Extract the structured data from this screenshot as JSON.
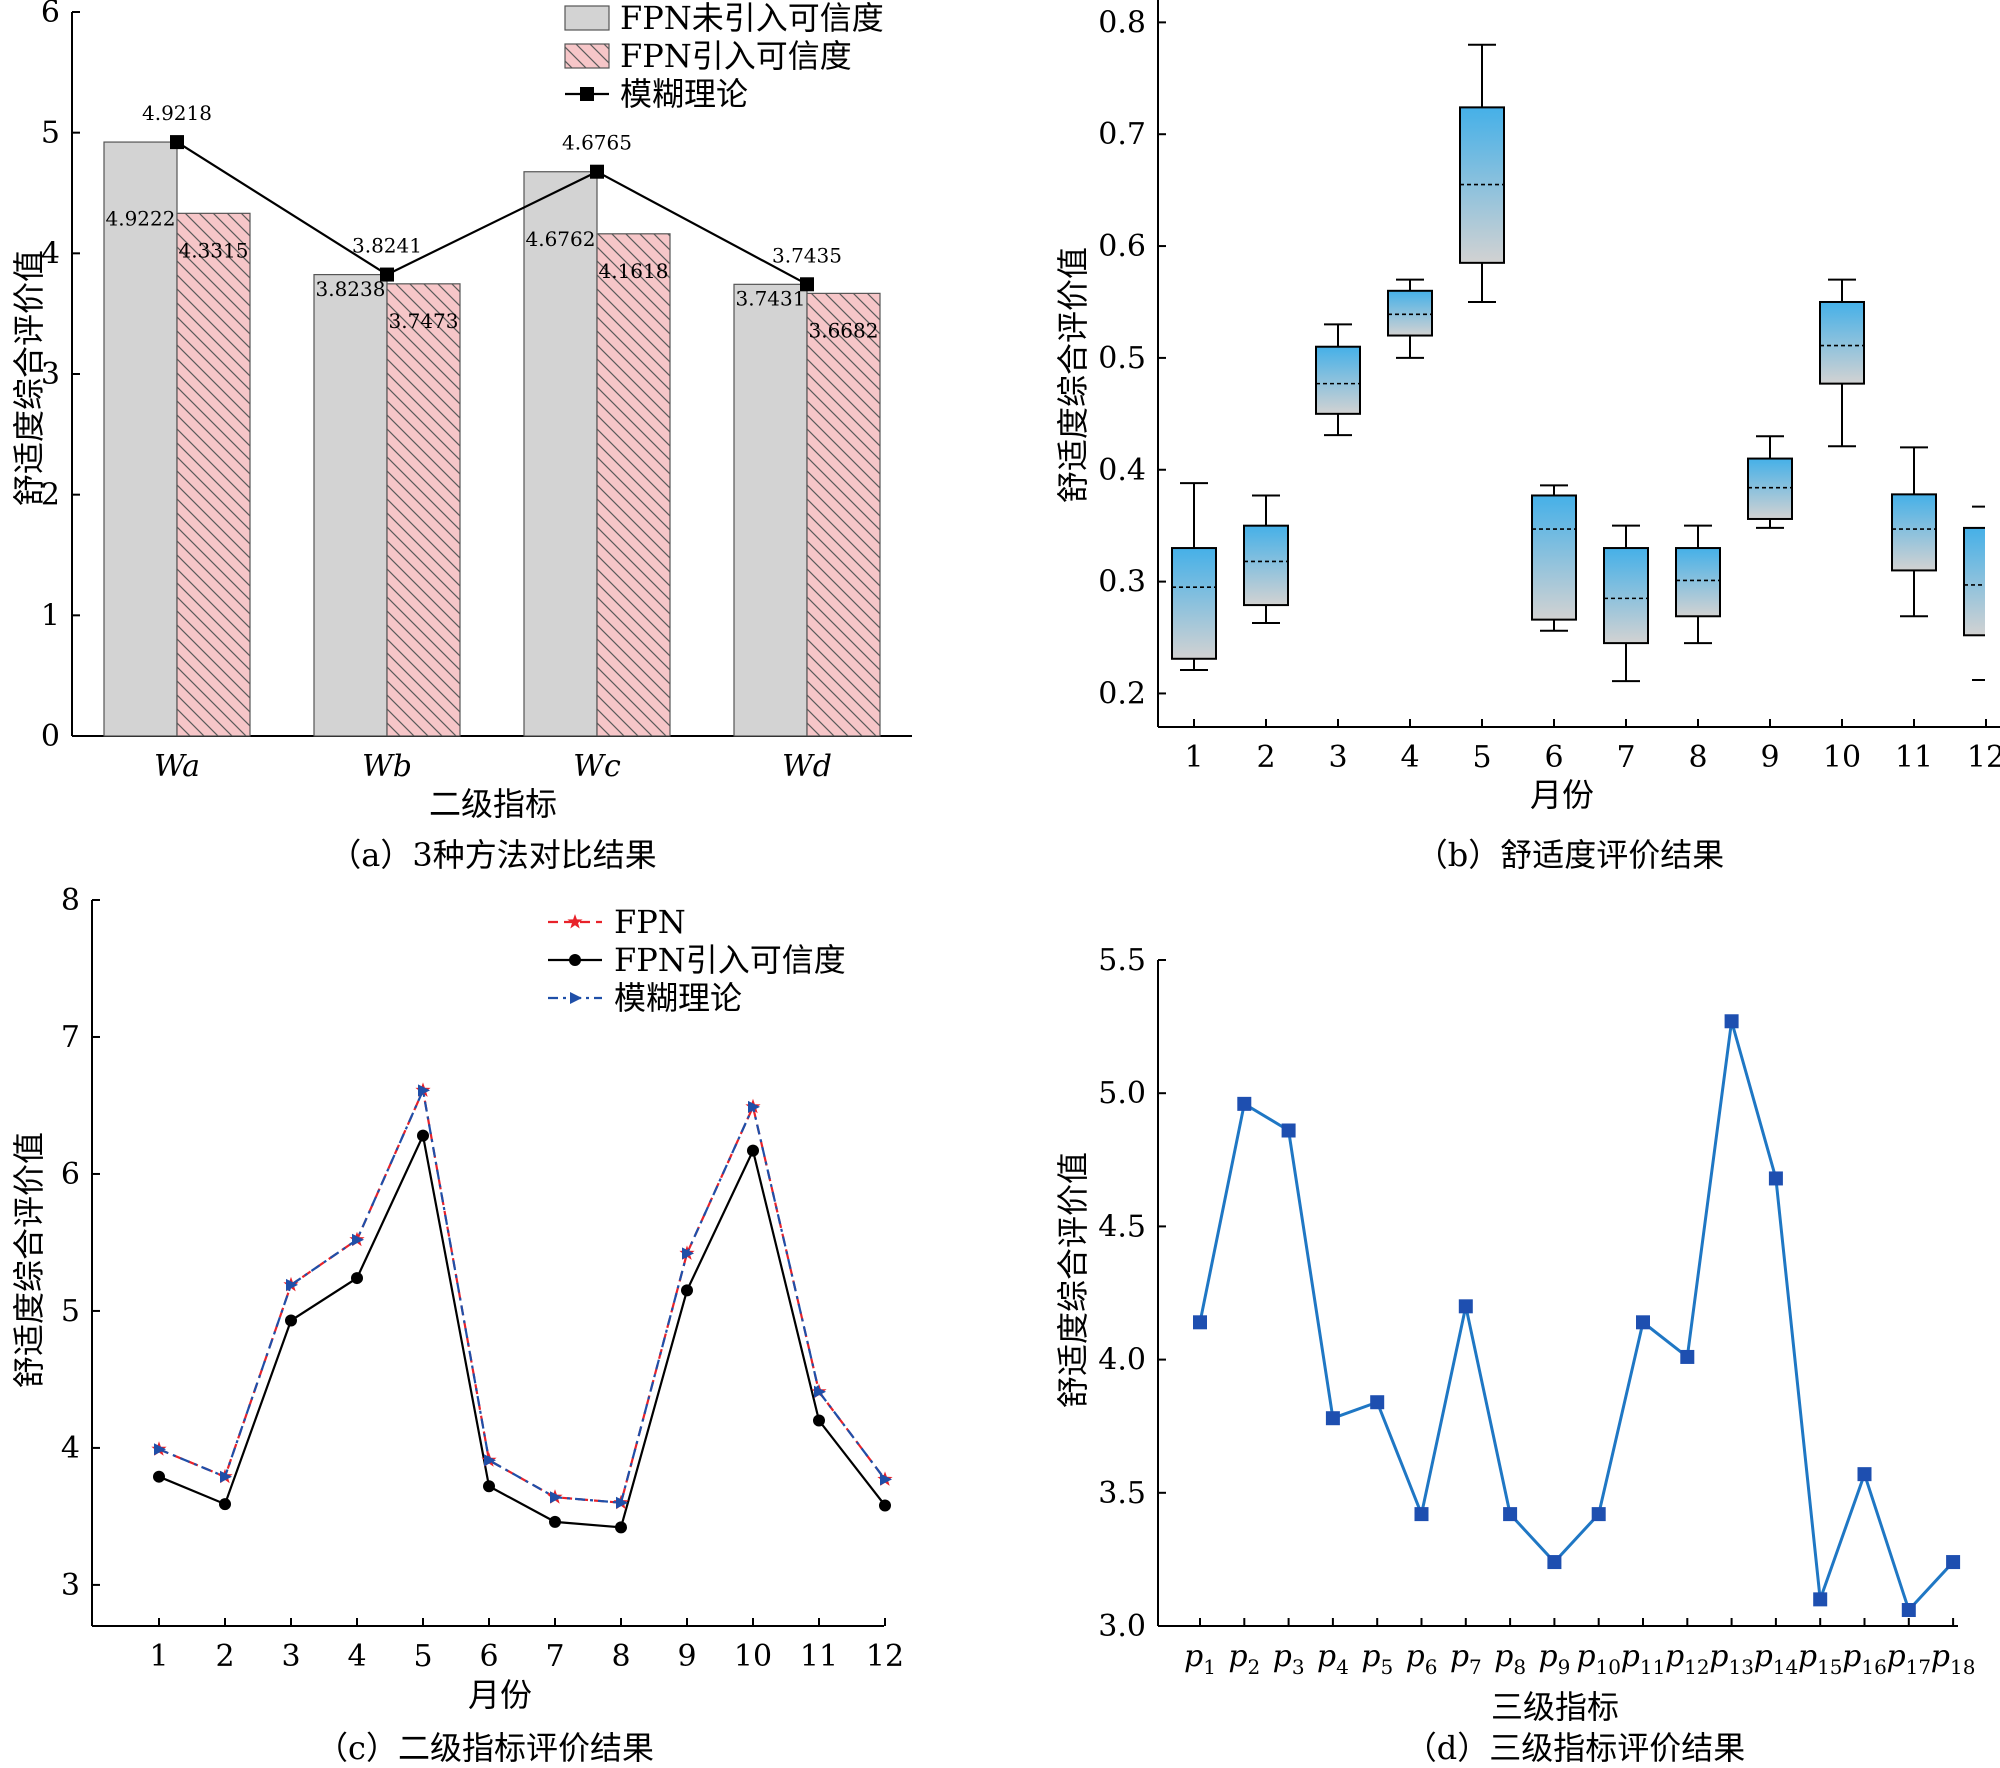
{
  "chart_data": [
    {
      "type": "bar",
      "caption": "（a）3种方法对比结果",
      "xlabel": "二级指标",
      "ylabel": "舒适度综合评价值",
      "ylim": [
        0,
        6
      ],
      "yticks": [
        "0",
        "1",
        "2",
        "3",
        "4",
        "5",
        "6"
      ],
      "categories": [
        "Wa",
        "Wb",
        "Wc",
        "Wd"
      ],
      "legend_position": "top-right",
      "series": [
        {
          "name": "FPN未引入可信度",
          "kind": "bar",
          "color": "#d3d3d3",
          "values": [
            4.9222,
            3.8238,
            4.6762,
            3.7431
          ],
          "labels": [
            "4.9222",
            "3.8238",
            "4.6762",
            "3.7431"
          ]
        },
        {
          "name": "FPN引入可信度",
          "kind": "bar",
          "color": "#f6c6c8",
          "pattern": "hatched",
          "values": [
            4.3315,
            3.7473,
            4.1618,
            3.6682
          ],
          "labels": [
            "4.3315",
            "3.7473",
            "4.1618",
            "3.6682"
          ]
        },
        {
          "name": "模糊理论",
          "kind": "line",
          "marker": "square",
          "color": "#000000",
          "values": [
            4.9218,
            3.8241,
            4.6765,
            3.7435
          ],
          "labels": [
            "4.9218",
            "3.8241",
            "4.6765",
            "3.7435"
          ]
        }
      ]
    },
    {
      "type": "box",
      "caption": "（b）舒适度评价结果",
      "xlabel": "月份",
      "ylabel": "舒适度综合评价值",
      "ylim": [
        0.17,
        0.82
      ],
      "yticks": [
        "0.2",
        "0.3",
        "0.4",
        "0.5",
        "0.6",
        "0.7",
        "0.8"
      ],
      "categories": [
        "1",
        "2",
        "3",
        "4",
        "5",
        "6",
        "7",
        "8",
        "9",
        "10",
        "11",
        "12"
      ],
      "gradient": [
        "#45b0e8",
        "#d2d2d2"
      ],
      "boxes": [
        {
          "min": 0.221,
          "q1": 0.231,
          "mean": 0.295,
          "q3": 0.33,
          "max": 0.388
        },
        {
          "min": 0.263,
          "q1": 0.279,
          "mean": 0.318,
          "q3": 0.35,
          "max": 0.377
        },
        {
          "min": 0.431,
          "q1": 0.45,
          "mean": 0.477,
          "q3": 0.51,
          "max": 0.53
        },
        {
          "min": 0.5,
          "q1": 0.52,
          "mean": 0.539,
          "q3": 0.56,
          "max": 0.57
        },
        {
          "min": 0.55,
          "q1": 0.585,
          "mean": 0.655,
          "q3": 0.724,
          "max": 0.78
        },
        {
          "min": 0.256,
          "q1": 0.266,
          "mean": 0.347,
          "q3": 0.377,
          "max": 0.386
        },
        {
          "min": 0.211,
          "q1": 0.245,
          "mean": 0.285,
          "q3": 0.33,
          "max": 0.35
        },
        {
          "min": 0.245,
          "q1": 0.269,
          "mean": 0.301,
          "q3": 0.33,
          "max": 0.35
        },
        {
          "min": 0.348,
          "q1": 0.356,
          "mean": 0.384,
          "q3": 0.41,
          "max": 0.43
        },
        {
          "min": 0.421,
          "q1": 0.477,
          "mean": 0.511,
          "q3": 0.55,
          "max": 0.57
        },
        {
          "min": 0.269,
          "q1": 0.31,
          "mean": 0.347,
          "q3": 0.378,
          "max": 0.42
        },
        {
          "min": 0.212,
          "q1": 0.252,
          "mean": 0.297,
          "q3": 0.348,
          "max": 0.367
        }
      ]
    },
    {
      "type": "line",
      "caption": "（c）二级指标评价结果",
      "xlabel": "月份",
      "ylabel": "舒适度综合评价值",
      "ylim": [
        2.7,
        8
      ],
      "yticks": [
        "3",
        "4",
        "5",
        "6",
        "7",
        "8"
      ],
      "categories": [
        "1",
        "2",
        "3",
        "4",
        "5",
        "6",
        "7",
        "8",
        "9",
        "10",
        "11",
        "12"
      ],
      "legend_position": "top-center",
      "series": [
        {
          "name": "FPN",
          "color": "#e8222a",
          "style": "dashed",
          "marker": "star",
          "values": [
            3.99,
            3.79,
            5.19,
            5.52,
            6.61,
            3.91,
            3.64,
            3.6,
            5.42,
            6.49,
            4.41,
            3.77
          ]
        },
        {
          "name": "FPN引入可信度",
          "color": "#000000",
          "style": "solid",
          "marker": "circle",
          "values": [
            3.79,
            3.59,
            4.93,
            5.24,
            6.28,
            3.72,
            3.46,
            3.42,
            5.15,
            6.17,
            4.2,
            3.58
          ]
        },
        {
          "name": "模糊理论",
          "color": "#1f4fa8",
          "style": "dashdot",
          "marker": "triangle",
          "values": [
            3.99,
            3.79,
            5.19,
            5.52,
            6.61,
            3.91,
            3.64,
            3.6,
            5.42,
            6.49,
            4.41,
            3.77
          ]
        }
      ]
    },
    {
      "type": "line",
      "caption": "（d）三级指标评价结果",
      "xlabel": "三级指标",
      "ylabel": "舒适度综合评价值",
      "ylim": [
        3.0,
        5.5
      ],
      "yticks": [
        "3.0",
        "3.5",
        "4.0",
        "4.5",
        "5.0",
        "5.5"
      ],
      "categories": [
        "p1",
        "p2",
        "p3",
        "p4",
        "p5",
        "p6",
        "p7",
        "p8",
        "p9",
        "p10",
        "p11",
        "p12",
        "p13",
        "p14",
        "p15",
        "p16",
        "p17",
        "p18"
      ],
      "series": [
        {
          "color": "#1f77c4",
          "marker": "square",
          "marker_color": "#1e4fb0",
          "values": [
            4.14,
            4.96,
            4.86,
            3.78,
            3.84,
            3.42,
            4.2,
            3.42,
            3.24,
            3.42,
            4.14,
            4.01,
            5.27,
            4.68,
            3.1,
            3.57,
            3.06,
            3.24
          ]
        }
      ]
    }
  ]
}
